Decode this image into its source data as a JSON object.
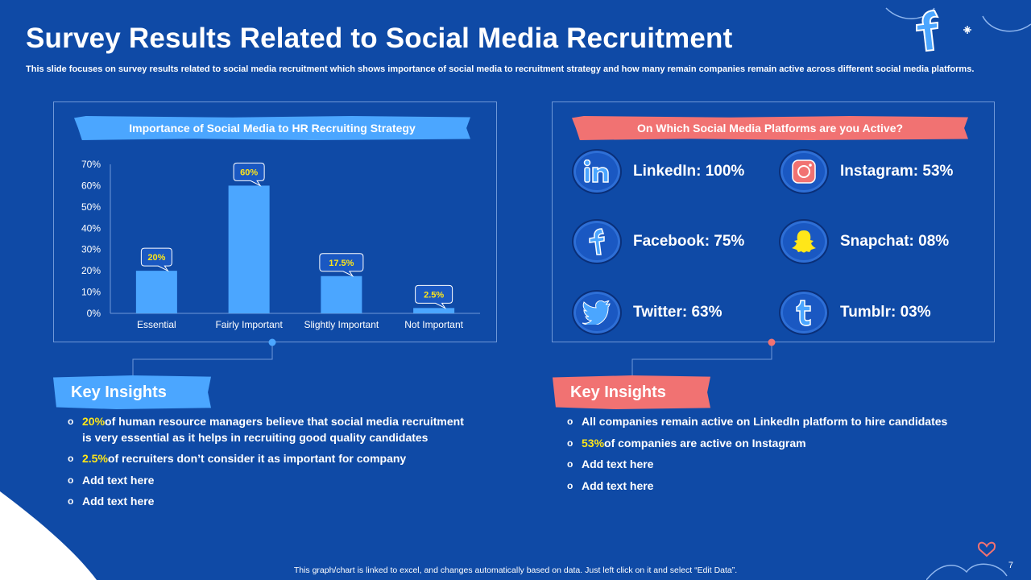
{
  "header": {
    "title": "Survey Results Related to Social Media Recruitment",
    "subtitle": "This slide focuses on survey results related to social media recruitment which shows importance of social media to recruitment strategy and how many remain companies remain active across different social media platforms."
  },
  "left_panel": {
    "banner": "Importance of Social Media to HR Recruiting Strategy"
  },
  "right_panel": {
    "banner": "On Which Social Media Platforms are you Active?",
    "platforms": [
      {
        "label": "LinkedIn: 100%",
        "icon": "linkedin-icon"
      },
      {
        "label": "Instagram: 53%",
        "icon": "instagram-icon"
      },
      {
        "label": "Facebook: 75%",
        "icon": "facebook-icon"
      },
      {
        "label": "Snapchat: 08%",
        "icon": "snapchat-icon"
      },
      {
        "label": "Twitter: 63%",
        "icon": "twitter-icon"
      },
      {
        "label": "Tumblr: 03%",
        "icon": "tumblr-icon"
      }
    ]
  },
  "chart_data": {
    "type": "bar",
    "categories": [
      "Essential",
      "Fairly Important",
      "Slightly Important",
      "Not Important"
    ],
    "values": [
      20,
      60,
      17.5,
      2.5
    ],
    "data_labels": [
      "20%",
      "60%",
      "17.5%",
      "2.5%"
    ],
    "title": "Importance of Social Media to HR Recruiting Strategy",
    "xlabel": "",
    "ylabel": "",
    "ylim": [
      0,
      70
    ],
    "yticks": [
      "0%",
      "10%",
      "20%",
      "30%",
      "40%",
      "50%",
      "60%",
      "70%"
    ],
    "grid": false,
    "bar_color": "#4ba6ff"
  },
  "insights_left": {
    "heading": "Key Insights",
    "items": [
      {
        "highlight": "20%",
        "text": "of human resource managers believe that social media recruitment is very essential as it helps in recruiting good quality candidates"
      },
      {
        "highlight": "2.5%",
        "text": "of recruiters don’t consider it as important for company"
      },
      {
        "highlight": "",
        "text": "Add text here"
      },
      {
        "highlight": "",
        "text": "Add text here"
      }
    ]
  },
  "insights_right": {
    "heading": "Key Insights",
    "items": [
      {
        "highlight": "",
        "text": "All companies remain active on LinkedIn platform to hire candidates"
      },
      {
        "highlight": "53%",
        "text": "of companies are active on Instagram"
      },
      {
        "highlight": "",
        "text": "Add text here"
      },
      {
        "highlight": "",
        "text": "Add text here"
      }
    ]
  },
  "footer": {
    "note": "This graph/chart is linked to excel, and changes automatically based on data. Just left click on it and select “Edit Data”.",
    "page_number": "7"
  },
  "colors": {
    "background": "#0f4aa6",
    "accent_blue": "#4ba6ff",
    "accent_red": "#f17272",
    "highlight": "#ffe619"
  }
}
